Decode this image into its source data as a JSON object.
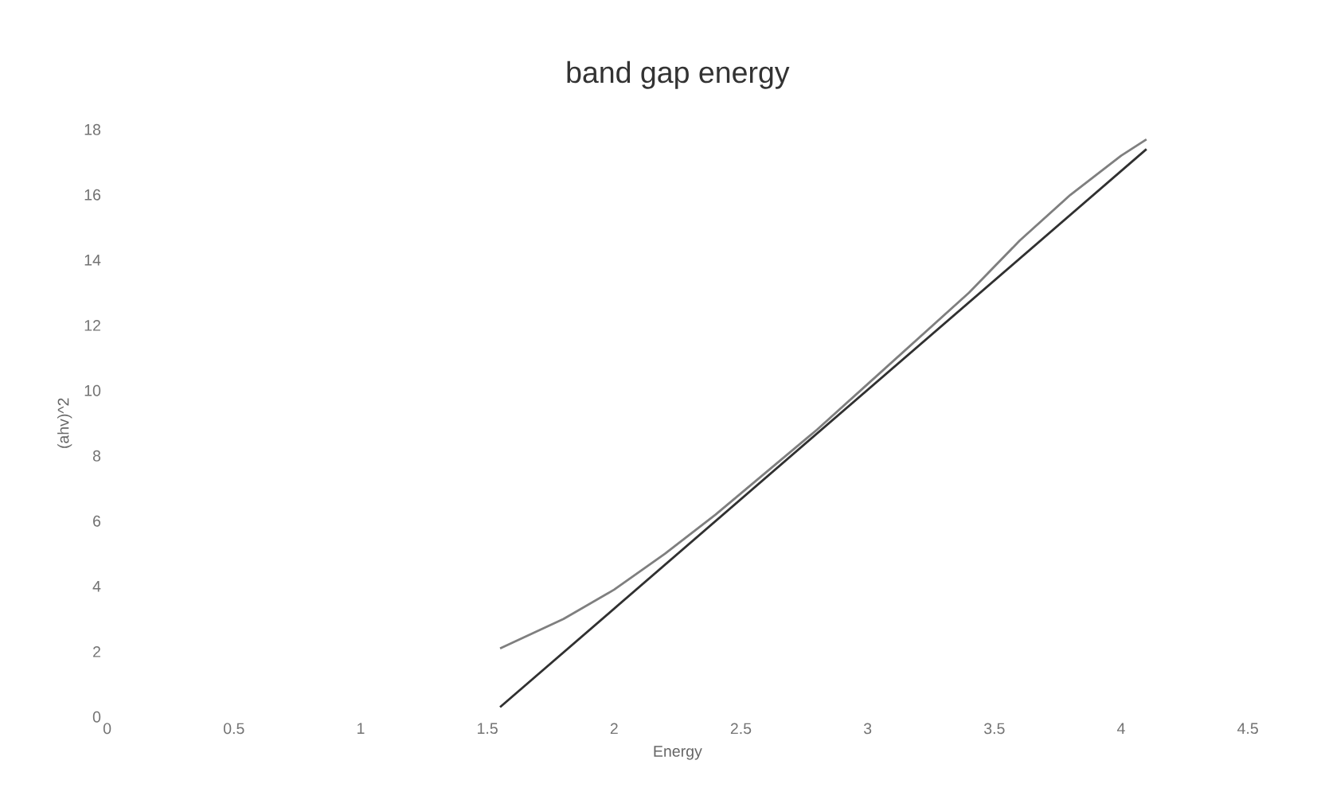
{
  "chart_data": {
    "type": "line",
    "title": "band gap energy",
    "xlabel": "Energy",
    "ylabel": "(ahv)^2",
    "xlim": [
      0,
      4.5
    ],
    "ylim": [
      0,
      18
    ],
    "xticks": [
      0,
      0.5,
      1,
      1.5,
      2,
      2.5,
      3,
      3.5,
      4,
      4.5
    ],
    "yticks": [
      0,
      2,
      4,
      6,
      8,
      10,
      12,
      14,
      16,
      18
    ],
    "marker": "none",
    "line_style": "solid",
    "series": [
      {
        "color": "#7f7f7f",
        "x": [
          1.55,
          1.8,
          2.0,
          2.2,
          2.4,
          2.6,
          2.8,
          3.0,
          3.2,
          3.4,
          3.6,
          3.8,
          4.0,
          4.1
        ],
        "values": [
          2.1,
          3.0,
          3.9,
          5.0,
          6.2,
          7.5,
          8.8,
          10.2,
          11.6,
          13.0,
          14.6,
          16.0,
          17.2,
          17.7
        ]
      },
      {
        "color": "#303030",
        "x": [
          1.55,
          4.1
        ],
        "values": [
          0.3,
          17.4
        ]
      }
    ]
  }
}
